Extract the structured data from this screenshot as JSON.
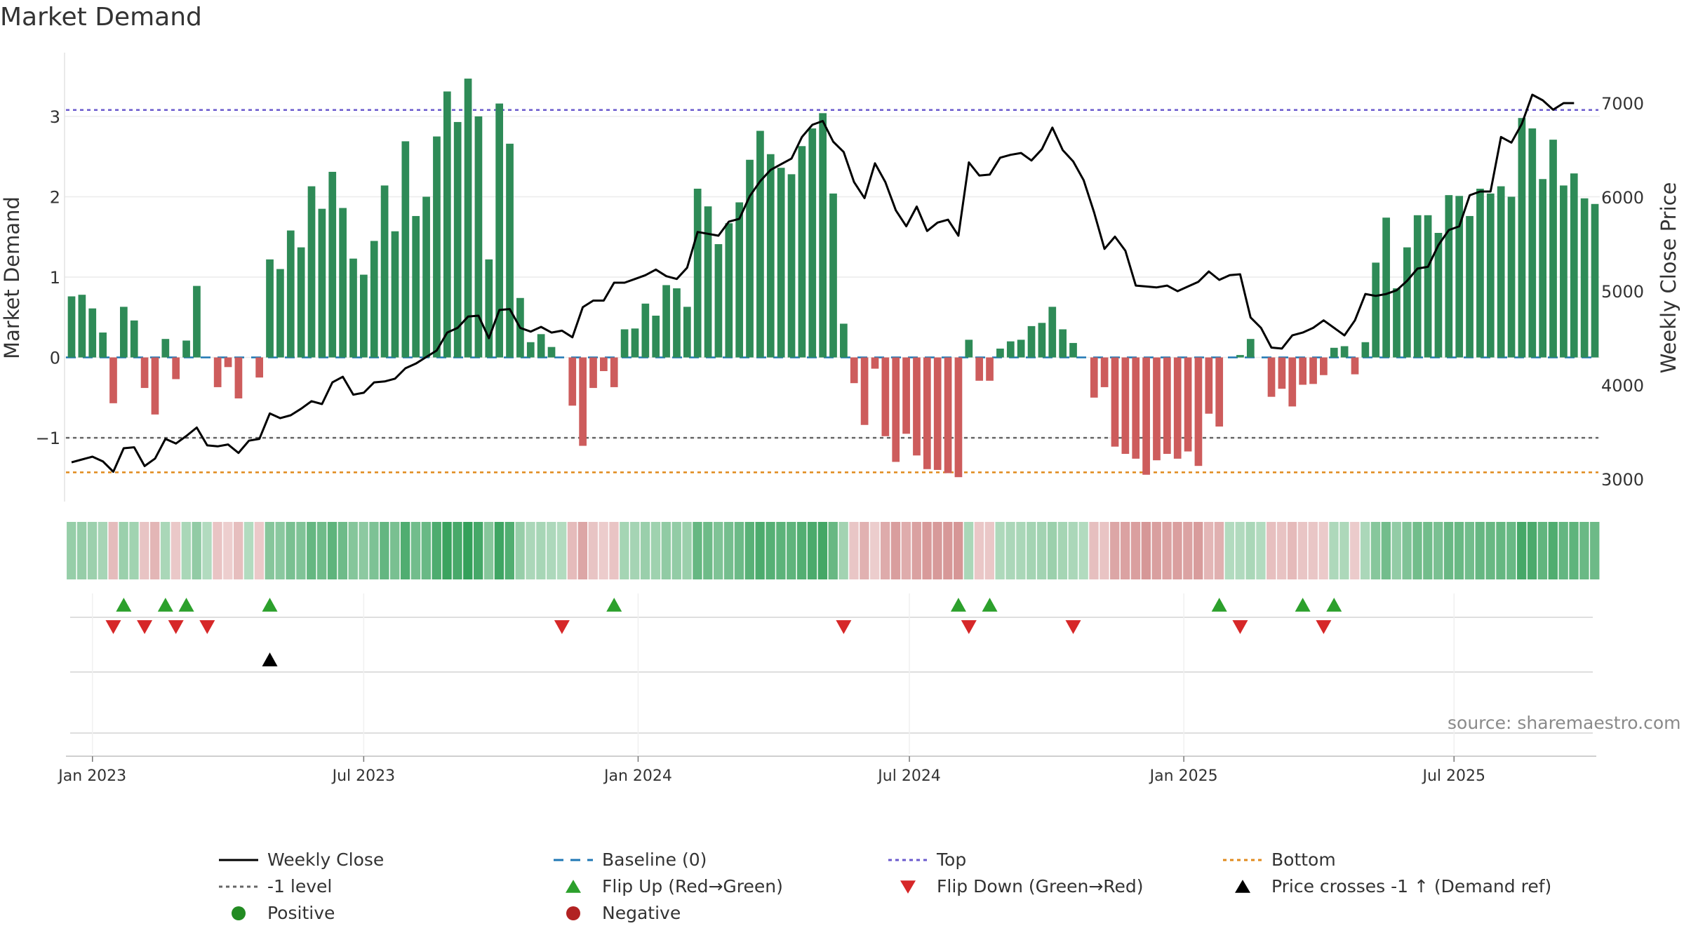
{
  "title": "Market Demand",
  "source_note": "source: sharemaestro.com",
  "colors": {
    "green": "#2e8b57",
    "red": "#cd5c5c",
    "price": "#000000",
    "baseline": "#1f77b4",
    "top": "#6a5acd",
    "bottom": "#e08a1c",
    "minus1": "#666666",
    "flip_up": "#2ca02c",
    "flip_down": "#d62728",
    "positive": "#228b22",
    "negative": "#b22222"
  },
  "chart_data": {
    "type": "bar",
    "title": "Market Demand",
    "ylabel": "Market Demand",
    "y2label": "Weekly Close Price",
    "ylim": [
      -1.75,
      3.75
    ],
    "yticks": [
      -1,
      0,
      1,
      2,
      3
    ],
    "ytick_labels": [
      "−1",
      "0",
      "1",
      "2",
      "3"
    ],
    "y2lim": [
      2800,
      7500
    ],
    "y2ticks": [
      3000,
      4000,
      5000,
      6000,
      7000
    ],
    "ref_lines": {
      "top": 3.08,
      "bottom": -1.43,
      "minus1": -1,
      "baseline": 0
    },
    "x_ticks": [
      {
        "label": "Jan 2023",
        "week": 2
      },
      {
        "label": "Jul 2023",
        "week": 28
      },
      {
        "label": "Jan 2024",
        "week": 54.3
      },
      {
        "label": "Jul 2024",
        "week": 80.3
      },
      {
        "label": "Jan 2025",
        "week": 106.6
      },
      {
        "label": "Jul 2025",
        "week": 132.5
      }
    ],
    "demand": [
      0.76,
      0.78,
      0.61,
      0.31,
      -0.57,
      0.63,
      0.46,
      -0.38,
      -0.71,
      0.23,
      -0.27,
      0.21,
      0.89,
      0,
      -0.37,
      -0.12,
      -0.51,
      0,
      -0.25,
      1.22,
      1.1,
      1.58,
      1.37,
      2.13,
      1.85,
      2.31,
      1.86,
      1.23,
      1.03,
      1.45,
      2.14,
      1.57,
      2.69,
      1.76,
      2.0,
      2.75,
      3.31,
      2.93,
      3.47,
      3.0,
      1.22,
      3.16,
      2.66,
      0.74,
      0.19,
      0.29,
      0.13,
      0,
      -0.6,
      -1.1,
      -0.38,
      -0.17,
      -0.37,
      0.35,
      0.36,
      0.67,
      0.52,
      0.9,
      0.86,
      0.63,
      2.1,
      1.88,
      1.41,
      1.67,
      1.93,
      2.46,
      2.82,
      2.53,
      2.36,
      2.28,
      2.63,
      2.85,
      3.04,
      2.04,
      0.42,
      -0.32,
      -0.84,
      -0.14,
      -0.98,
      -1.3,
      -0.95,
      -1.22,
      -1.39,
      -1.4,
      -1.44,
      -1.49,
      0.22,
      -0.29,
      -0.29,
      0.11,
      0.2,
      0.22,
      0.39,
      0.43,
      0.63,
      0.35,
      0.18,
      0,
      -0.5,
      -0.37,
      -1.11,
      -1.2,
      -1.26,
      -1.46,
      -1.28,
      -1.2,
      -1.26,
      -1.17,
      -1.35,
      -0.7,
      -0.86,
      0,
      0.03,
      0.23,
      0,
      -0.49,
      -0.39,
      -0.61,
      -0.34,
      -0.33,
      -0.22,
      0.12,
      0.14,
      -0.21,
      0.19,
      1.18,
      1.74,
      0.86,
      1.37,
      1.77,
      1.77,
      1.55,
      2.02,
      2.01,
      1.76,
      2.1,
      2.04,
      2.13,
      2.0,
      2.98,
      2.85,
      2.22,
      2.71,
      2.14,
      2.29,
      1.98,
      1.91
    ],
    "price": [
      3180,
      3210,
      3240,
      3190,
      3080,
      3330,
      3340,
      3140,
      3220,
      3430,
      3380,
      3460,
      3550,
      3360,
      3350,
      3370,
      3280,
      3410,
      3430,
      3700,
      3650,
      3680,
      3750,
      3830,
      3800,
      4030,
      4090,
      3900,
      3920,
      4030,
      4040,
      4070,
      4180,
      4230,
      4300,
      4370,
      4560,
      4610,
      4730,
      4740,
      4500,
      4800,
      4810,
      4610,
      4570,
      4620,
      4560,
      4580,
      4510,
      4830,
      4900,
      4900,
      5090,
      5090,
      5130,
      5170,
      5230,
      5160,
      5130,
      5250,
      5630,
      5610,
      5590,
      5740,
      5770,
      6010,
      6170,
      6290,
      6350,
      6410,
      6640,
      6770,
      6810,
      6590,
      6480,
      6160,
      5990,
      6360,
      6160,
      5860,
      5690,
      5900,
      5640,
      5730,
      5760,
      5590,
      6370,
      6230,
      6240,
      6420,
      6450,
      6470,
      6390,
      6510,
      6740,
      6500,
      6380,
      6180,
      5840,
      5450,
      5580,
      5430,
      5060,
      5050,
      5040,
      5060,
      5000,
      5050,
      5100,
      5210,
      5120,
      5170,
      5180,
      4720,
      4610,
      4400,
      4390,
      4530,
      4560,
      4610,
      4690,
      4610,
      4530,
      4690,
      4970,
      4950,
      4970,
      5010,
      5110,
      5240,
      5260,
      5490,
      5650,
      5690,
      6020,
      6060,
      6060,
      6640,
      6580,
      6780,
      7090,
      7030,
      6930,
      7000,
      7000
    ],
    "flip_up_weeks": [
      5,
      9,
      11,
      19,
      52,
      85,
      88,
      110,
      118,
      121
    ],
    "flip_down_weeks": [
      4,
      7,
      10,
      13,
      47,
      74,
      86,
      96,
      112,
      120
    ],
    "price_cross_weeks": [
      19
    ],
    "positive_label": "Positive",
    "negative_label": "Negative"
  },
  "legend": [
    {
      "key": "weekly-close",
      "label": "Weekly Close"
    },
    {
      "key": "baseline",
      "label": "Baseline (0)"
    },
    {
      "key": "top",
      "label": "Top"
    },
    {
      "key": "bottom",
      "label": "Bottom"
    },
    {
      "key": "minus1",
      "label": "-1 level"
    },
    {
      "key": "flip-up",
      "label": "Flip Up (Red→Green)"
    },
    {
      "key": "flip-down",
      "label": "Flip Down (Green→Red)"
    },
    {
      "key": "price-cross",
      "label": "Price crosses -1 ↑ (Demand ref)"
    },
    {
      "key": "positive",
      "label": "Positive"
    },
    {
      "key": "negative",
      "label": "Negative"
    }
  ]
}
